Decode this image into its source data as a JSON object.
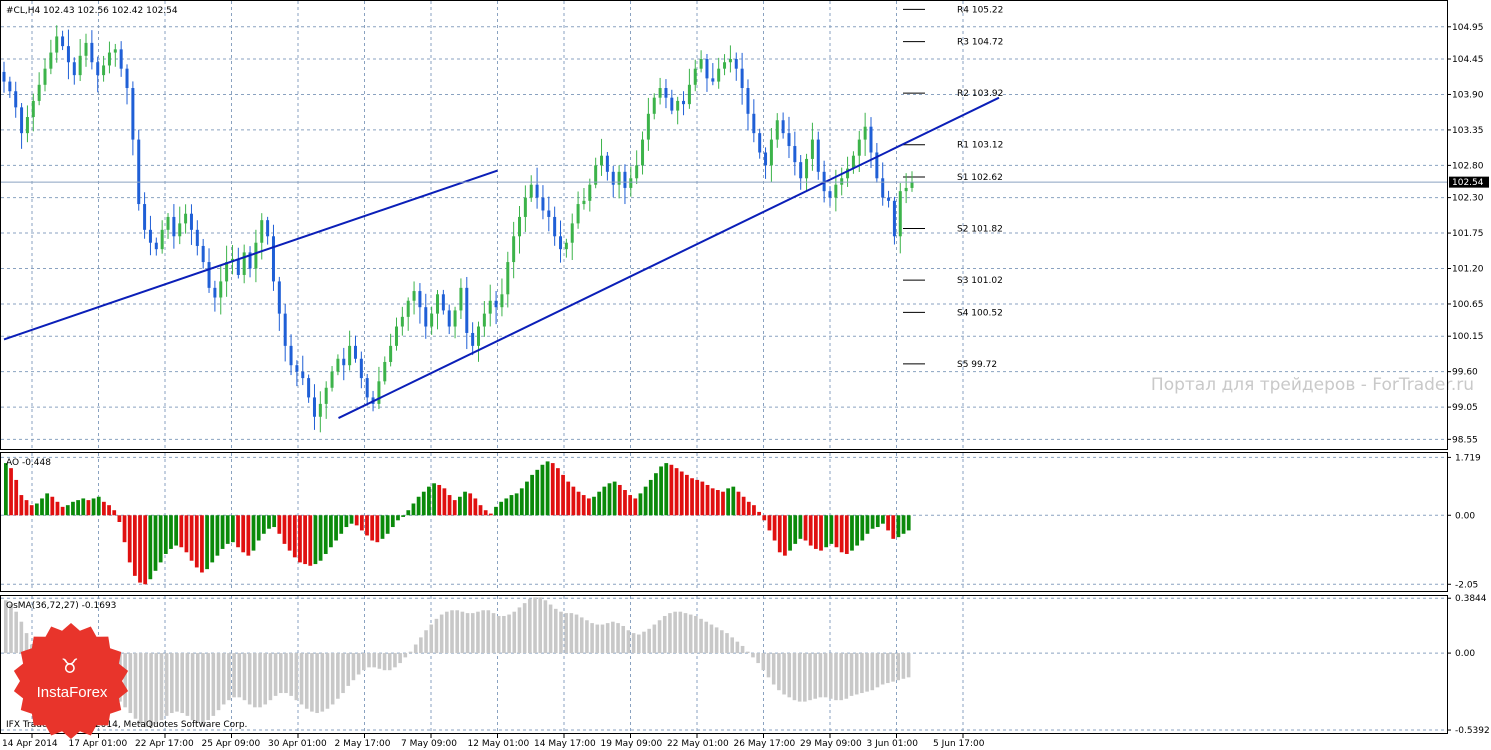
{
  "chart_data": [
    {
      "type": "candlestick",
      "header": "#CL,H4  102.43 102.56 102.42 102.54",
      "symbol": "#CL",
      "timeframe": "H4",
      "ohlc": {
        "open": 102.43,
        "high": 102.56,
        "low": 102.42,
        "close": 102.54
      },
      "current_price": "102.54",
      "yticks": [
        "104.95",
        "104.45",
        "103.90",
        "103.35",
        "102.80",
        "102.30",
        "101.75",
        "101.20",
        "100.65",
        "100.15",
        "99.60",
        "99.05",
        "98.55"
      ],
      "ylim": [
        98.4,
        105.35
      ],
      "pivots": [
        {
          "label": "R4 105.22",
          "value": 105.22
        },
        {
          "label": "R3 104.72",
          "value": 104.72
        },
        {
          "label": "R2 103.92",
          "value": 103.92
        },
        {
          "label": "R1 103.12",
          "value": 103.12
        },
        {
          "label": "S1 102.62",
          "value": 102.62
        },
        {
          "label": "S2 101.82",
          "value": 101.82
        },
        {
          "label": "S3 101.02",
          "value": 101.02
        },
        {
          "label": "S4 100.52",
          "value": 100.52
        },
        {
          "label": "S5 99.72",
          "value": 99.72
        }
      ],
      "closes": [
        104.1,
        103.95,
        103.7,
        103.3,
        103.55,
        103.8,
        104.05,
        104.3,
        104.55,
        104.8,
        104.65,
        104.4,
        104.2,
        104.5,
        104.7,
        104.4,
        104.2,
        104.35,
        104.55,
        104.6,
        104.3,
        104.0,
        103.2,
        102.2,
        101.8,
        101.6,
        101.5,
        101.8,
        102.0,
        101.7,
        101.9,
        102.05,
        101.8,
        101.55,
        101.3,
        100.9,
        100.75,
        101.0,
        101.3,
        101.35,
        101.1,
        101.45,
        101.2,
        101.6,
        101.95,
        101.7,
        101.0,
        100.5,
        100.0,
        99.7,
        99.6,
        99.5,
        99.2,
        98.9,
        99.1,
        99.35,
        99.6,
        99.8,
        99.7,
        100.0,
        99.8,
        99.5,
        99.2,
        99.1,
        99.45,
        99.75,
        100.0,
        100.3,
        100.45,
        100.7,
        100.85,
        100.6,
        100.3,
        100.5,
        100.8,
        100.55,
        100.3,
        100.55,
        100.9,
        100.2,
        100.0,
        100.3,
        100.5,
        100.7,
        100.6,
        100.8,
        101.3,
        101.7,
        102.0,
        102.3,
        102.5,
        102.3,
        102.1,
        102.0,
        101.7,
        101.5,
        101.6,
        101.9,
        102.2,
        102.25,
        102.5,
        102.8,
        102.95,
        102.7,
        102.5,
        102.7,
        102.45,
        102.6,
        102.8,
        103.2,
        103.6,
        103.85,
        104.0,
        103.85,
        103.65,
        103.8,
        103.75,
        104.05,
        104.3,
        104.45,
        104.15,
        104.1,
        104.3,
        104.4,
        104.45,
        104.3,
        104.0,
        103.6,
        103.3,
        103.0,
        102.8,
        103.2,
        103.5,
        103.3,
        103.1,
        102.85,
        102.6,
        102.9,
        103.2,
        102.7,
        102.4,
        102.3,
        102.5,
        102.6,
        102.75,
        102.95,
        103.2,
        103.4,
        103.0,
        102.6,
        102.3,
        102.25,
        101.7,
        102.4,
        102.45,
        102.54
      ],
      "x_tick_labels": [
        "14 Apr 2014",
        "17 Apr 01:00",
        "22 Apr 17:00",
        "25 Apr 09:00",
        "30 Apr 01:00",
        "2 May 17:00",
        "7 May 09:00",
        "12 May 01:00",
        "14 May 17:00",
        "19 May 09:00",
        "22 May 01:00",
        "26 May 17:00",
        "29 May 09:00",
        "3 Jun 01:00",
        "5 Jun 17:00"
      ],
      "trendlines": [
        {
          "from": [
            "14 Apr 2014",
            100.1
          ],
          "to": [
            "12 May 01:00",
            102.72
          ]
        },
        {
          "from": [
            "2 May 17:00",
            98.88
          ],
          "to": [
            "5 Jun 17:00",
            103.85
          ]
        }
      ],
      "colors": {
        "up": "#3cb34a",
        "down": "#1f5fd6",
        "trendline": "#0b1fb8",
        "grid": "#8aa2c0"
      },
      "grid": true
    },
    {
      "type": "bar",
      "label": "AO -0.448",
      "yticks": [
        "1.719",
        "0.00",
        "-2.05"
      ],
      "ylim": [
        -2.25,
        1.85
      ],
      "colors": {
        "up": "#0a8a0a",
        "down": "#e01010"
      },
      "values": [
        1.55,
        1.4,
        1.05,
        0.6,
        0.45,
        0.3,
        0.35,
        0.5,
        0.65,
        0.55,
        0.4,
        0.25,
        0.3,
        0.4,
        0.45,
        0.5,
        0.45,
        0.5,
        0.55,
        0.4,
        0.3,
        0.15,
        -0.2,
        -0.8,
        -1.4,
        -1.8,
        -2.0,
        -2.05,
        -1.9,
        -1.65,
        -1.4,
        -1.15,
        -1.0,
        -0.9,
        -0.95,
        -1.1,
        -1.35,
        -1.55,
        -1.7,
        -1.6,
        -1.4,
        -1.2,
        -1.0,
        -0.85,
        -0.8,
        -0.95,
        -1.1,
        -1.2,
        -1.05,
        -0.75,
        -0.55,
        -0.4,
        -0.35,
        -0.55,
        -0.85,
        -1.05,
        -1.25,
        -1.4,
        -1.45,
        -1.5,
        -1.45,
        -1.35,
        -1.15,
        -0.95,
        -0.75,
        -0.55,
        -0.35,
        -0.25,
        -0.3,
        -0.45,
        -0.6,
        -0.75,
        -0.8,
        -0.7,
        -0.55,
        -0.35,
        -0.15,
        -0.05,
        0.15,
        0.35,
        0.55,
        0.7,
        0.85,
        0.95,
        0.9,
        0.8,
        0.6,
        0.45,
        0.55,
        0.7,
        0.65,
        0.5,
        0.3,
        0.15,
        0.05,
        0.25,
        0.4,
        0.5,
        0.6,
        0.65,
        0.8,
        1.0,
        1.2,
        1.35,
        1.5,
        1.6,
        1.55,
        1.4,
        1.2,
        1.0,
        0.85,
        0.7,
        0.6,
        0.5,
        0.55,
        0.7,
        0.85,
        0.95,
        1.0,
        0.9,
        0.75,
        0.6,
        0.5,
        0.65,
        0.85,
        1.05,
        1.25,
        1.45,
        1.55,
        1.5,
        1.4,
        1.3,
        1.2,
        1.1,
        1.05,
        1.0,
        0.9,
        0.8,
        0.75,
        0.7,
        0.8,
        0.85,
        0.7,
        0.55,
        0.4,
        0.3,
        0.1,
        -0.15,
        -0.45,
        -0.75,
        -1.1,
        -1.2,
        -1.05,
        -0.85,
        -0.7,
        -0.75,
        -0.9,
        -1.0,
        -1.05,
        -0.95,
        -0.85,
        -0.95,
        -1.1,
        -1.15,
        -1.05,
        -0.9,
        -0.75,
        -0.55,
        -0.4,
        -0.35,
        -0.25,
        -0.45,
        -0.7,
        -0.65,
        -0.55,
        -0.45
      ]
    },
    {
      "type": "bar",
      "label": "OsMA(36,72,27) -0.1693",
      "yticks": [
        "0.3844",
        "0.00",
        "-0.5392"
      ],
      "ylim": [
        -0.56,
        0.4
      ],
      "colors": {
        "bars": "#c8c8c8"
      },
      "values": [
        0.37,
        0.34,
        0.29,
        0.22,
        0.14,
        0.06,
        -0.02,
        -0.1,
        -0.18,
        -0.26,
        -0.33,
        -0.39,
        -0.43,
        -0.44,
        -0.42,
        -0.38,
        -0.33,
        -0.3,
        -0.28,
        -0.27,
        -0.28,
        -0.3,
        -0.34,
        -0.38,
        -0.42,
        -0.46,
        -0.5,
        -0.52,
        -0.52,
        -0.5,
        -0.47,
        -0.44,
        -0.42,
        -0.41,
        -0.42,
        -0.44,
        -0.47,
        -0.49,
        -0.49,
        -0.47,
        -0.44,
        -0.4,
        -0.36,
        -0.33,
        -0.31,
        -0.31,
        -0.33,
        -0.36,
        -0.38,
        -0.38,
        -0.36,
        -0.33,
        -0.3,
        -0.28,
        -0.28,
        -0.3,
        -0.33,
        -0.36,
        -0.39,
        -0.41,
        -0.42,
        -0.41,
        -0.39,
        -0.36,
        -0.32,
        -0.28,
        -0.23,
        -0.19,
        -0.15,
        -0.12,
        -0.1,
        -0.1,
        -0.11,
        -0.12,
        -0.12,
        -0.1,
        -0.07,
        -0.03,
        0.01,
        0.06,
        0.11,
        0.16,
        0.2,
        0.24,
        0.27,
        0.29,
        0.3,
        0.3,
        0.29,
        0.28,
        0.28,
        0.29,
        0.3,
        0.3,
        0.28,
        0.26,
        0.26,
        0.27,
        0.29,
        0.32,
        0.35,
        0.38,
        0.39,
        0.39,
        0.37,
        0.34,
        0.31,
        0.29,
        0.28,
        0.28,
        0.27,
        0.25,
        0.23,
        0.21,
        0.2,
        0.2,
        0.21,
        0.22,
        0.21,
        0.19,
        0.16,
        0.14,
        0.13,
        0.15,
        0.17,
        0.2,
        0.23,
        0.26,
        0.28,
        0.29,
        0.29,
        0.28,
        0.27,
        0.26,
        0.24,
        0.22,
        0.2,
        0.18,
        0.16,
        0.14,
        0.11,
        0.08,
        0.05,
        0.01,
        -0.03,
        -0.07,
        -0.12,
        -0.17,
        -0.22,
        -0.26,
        -0.29,
        -0.31,
        -0.33,
        -0.34,
        -0.34,
        -0.33,
        -0.32,
        -0.31,
        -0.31,
        -0.32,
        -0.33,
        -0.33,
        -0.32,
        -0.3,
        -0.29,
        -0.28,
        -0.27,
        -0.26,
        -0.24,
        -0.22,
        -0.21,
        -0.2,
        -0.19,
        -0.18,
        -0.17
      ]
    }
  ],
  "watermark": "Портал для трейдеров - ForTrader.ru",
  "copyright": "IFX Trader, © 2001-2014, MetaQuotes Software Corp.",
  "logo": {
    "text": "InstaForex",
    "color": "#e8342b"
  }
}
